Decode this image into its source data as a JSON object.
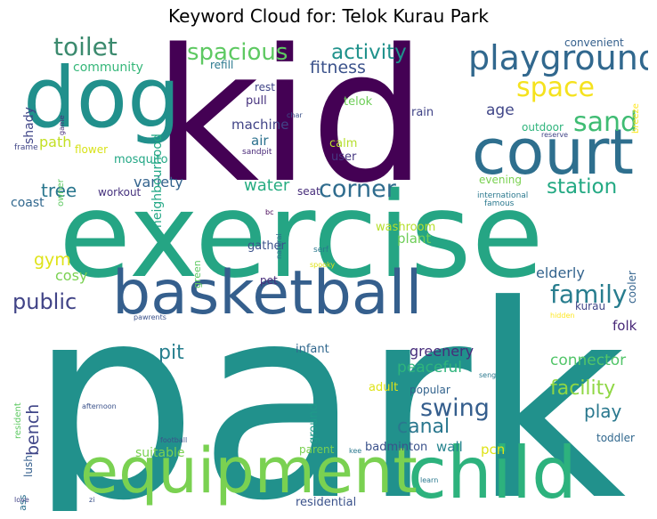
{
  "title": "Keyword Cloud for: Telok Kurau Park",
  "words": [
    {
      "text": "park",
      "color": "#21918c"
    },
    {
      "text": "kid",
      "color": "#440154"
    },
    {
      "text": "exercise",
      "color": "#25a584"
    },
    {
      "text": "dog",
      "color": "#21908c"
    },
    {
      "text": "court",
      "color": "#2e6f8e"
    },
    {
      "text": "basketball",
      "color": "#355f8d"
    },
    {
      "text": "child",
      "color": "#2db27d"
    },
    {
      "text": "equipment",
      "color": "#7ad151"
    },
    {
      "text": "playground",
      "color": "#31688e"
    },
    {
      "text": "toilet",
      "color": "#3b8a6e"
    },
    {
      "text": "spacious",
      "color": "#5ec962"
    },
    {
      "text": "activity",
      "color": "#20928c"
    },
    {
      "text": "space",
      "color": "#f5e21e"
    },
    {
      "text": "sand",
      "color": "#3fbc73"
    },
    {
      "text": "corner",
      "color": "#2f6c8e"
    },
    {
      "text": "station",
      "color": "#23a983"
    },
    {
      "text": "family",
      "color": "#287d8e"
    },
    {
      "text": "swing",
      "color": "#355e8d"
    },
    {
      "text": "facility",
      "color": "#8fd744"
    },
    {
      "text": "canal",
      "color": "#2a778e"
    },
    {
      "text": "public",
      "color": "#414487"
    },
    {
      "text": "tree",
      "color": "#2a778e"
    },
    {
      "text": "fitness",
      "color": "#3b528b"
    },
    {
      "text": "water",
      "color": "#27ad81"
    },
    {
      "text": "play",
      "color": "#2a788e"
    },
    {
      "text": "peaceful",
      "color": "#2fb47c"
    },
    {
      "text": "connector",
      "color": "#52c569"
    },
    {
      "text": "pit",
      "color": "#277f8e"
    },
    {
      "text": "bench",
      "color": "#404688"
    },
    {
      "text": "gym",
      "color": "#dfe318"
    },
    {
      "text": "path",
      "color": "#c2df23"
    },
    {
      "text": "variety",
      "color": "#33638d"
    },
    {
      "text": "age",
      "color": "#404688"
    },
    {
      "text": "air",
      "color": "#2c728e"
    },
    {
      "text": "machine",
      "color": "#414487"
    },
    {
      "text": "neighbourhood",
      "color": "#22a785"
    },
    {
      "text": "community",
      "color": "#35b779"
    },
    {
      "text": "shady",
      "color": "#404688"
    },
    {
      "text": "cosy",
      "color": "#7ad151"
    },
    {
      "text": "plant",
      "color": "#6ece58"
    },
    {
      "text": "greenery",
      "color": "#472d7b"
    },
    {
      "text": "elderly",
      "color": "#33638d"
    },
    {
      "text": "folk",
      "color": "#482878"
    },
    {
      "text": "suitable",
      "color": "#7ad151"
    },
    {
      "text": "wall",
      "color": "#25848e"
    },
    {
      "text": "convenient",
      "color": "#35608d"
    },
    {
      "text": "rest",
      "color": "#404688"
    },
    {
      "text": "pull",
      "color": "#46327e"
    },
    {
      "text": "refill",
      "color": "#2a788e"
    },
    {
      "text": "telok",
      "color": "#6ece58"
    },
    {
      "text": "rain",
      "color": "#414487"
    },
    {
      "text": "outdoor",
      "color": "#2fb47c"
    },
    {
      "text": "calm",
      "color": "#b5de2b"
    },
    {
      "text": "user",
      "color": "#453781"
    },
    {
      "text": "mosquito",
      "color": "#22a785"
    },
    {
      "text": "flower",
      "color": "#d8e219"
    },
    {
      "text": "workout",
      "color": "#46327e"
    },
    {
      "text": "coast",
      "color": "#31688e"
    },
    {
      "text": "seat",
      "color": "#472d7b"
    },
    {
      "text": "evening",
      "color": "#7ad151"
    },
    {
      "text": "international",
      "color": "#2a788e"
    },
    {
      "text": "famous",
      "color": "#2a788e"
    },
    {
      "text": "gather",
      "color": "#3b528b"
    },
    {
      "text": "washroom",
      "color": "#b5de2b"
    },
    {
      "text": "pet",
      "color": "#472d7b"
    },
    {
      "text": "green",
      "color": "#5ec962"
    },
    {
      "text": "cooler",
      "color": "#33638d"
    },
    {
      "text": "kurau",
      "color": "#404688"
    },
    {
      "text": "infant",
      "color": "#31688e"
    },
    {
      "text": "ground",
      "color": "#1f9a8a"
    },
    {
      "text": "adult",
      "color": "#dfe318"
    },
    {
      "text": "popular",
      "color": "#33638d"
    },
    {
      "text": "resident",
      "color": "#5ec962"
    },
    {
      "text": "badminton",
      "color": "#3b528b"
    },
    {
      "text": "pcn",
      "color": "#dfe318"
    },
    {
      "text": "toddler",
      "color": "#31688e"
    },
    {
      "text": "lush",
      "color": "#355f8d"
    },
    {
      "text": "class",
      "color": "#2c718e"
    },
    {
      "text": "parent",
      "color": "#7ad151"
    },
    {
      "text": "residential",
      "color": "#3b528b"
    },
    {
      "text": "breeze",
      "color": "#fde725"
    },
    {
      "text": "owner",
      "color": "#5ec962"
    },
    {
      "text": "frame",
      "color": "#404688"
    },
    {
      "text": "game",
      "color": "#472d7b"
    },
    {
      "text": "char",
      "color": "#3b528b"
    },
    {
      "text": "sandpit",
      "color": "#482878"
    },
    {
      "text": "reserve",
      "color": "#414487"
    },
    {
      "text": "bc",
      "color": "#440154"
    },
    {
      "text": "natural",
      "color": "#31688e"
    },
    {
      "text": "serf",
      "color": "#2a788e"
    },
    {
      "text": "spooky",
      "color": "#dfe318"
    },
    {
      "text": "pawrents",
      "color": "#3b528b"
    },
    {
      "text": "hidden",
      "color": "#fde725"
    },
    {
      "text": "seng",
      "color": "#2a788e"
    },
    {
      "text": "afternoon",
      "color": "#3b528b"
    },
    {
      "text": "football",
      "color": "#3b528b"
    },
    {
      "text": "kee",
      "color": "#2a788e"
    },
    {
      "text": "learn",
      "color": "#2a788e"
    },
    {
      "text": "love",
      "color": "#414487"
    },
    {
      "text": "zi",
      "color": "#3b528b"
    }
  ]
}
